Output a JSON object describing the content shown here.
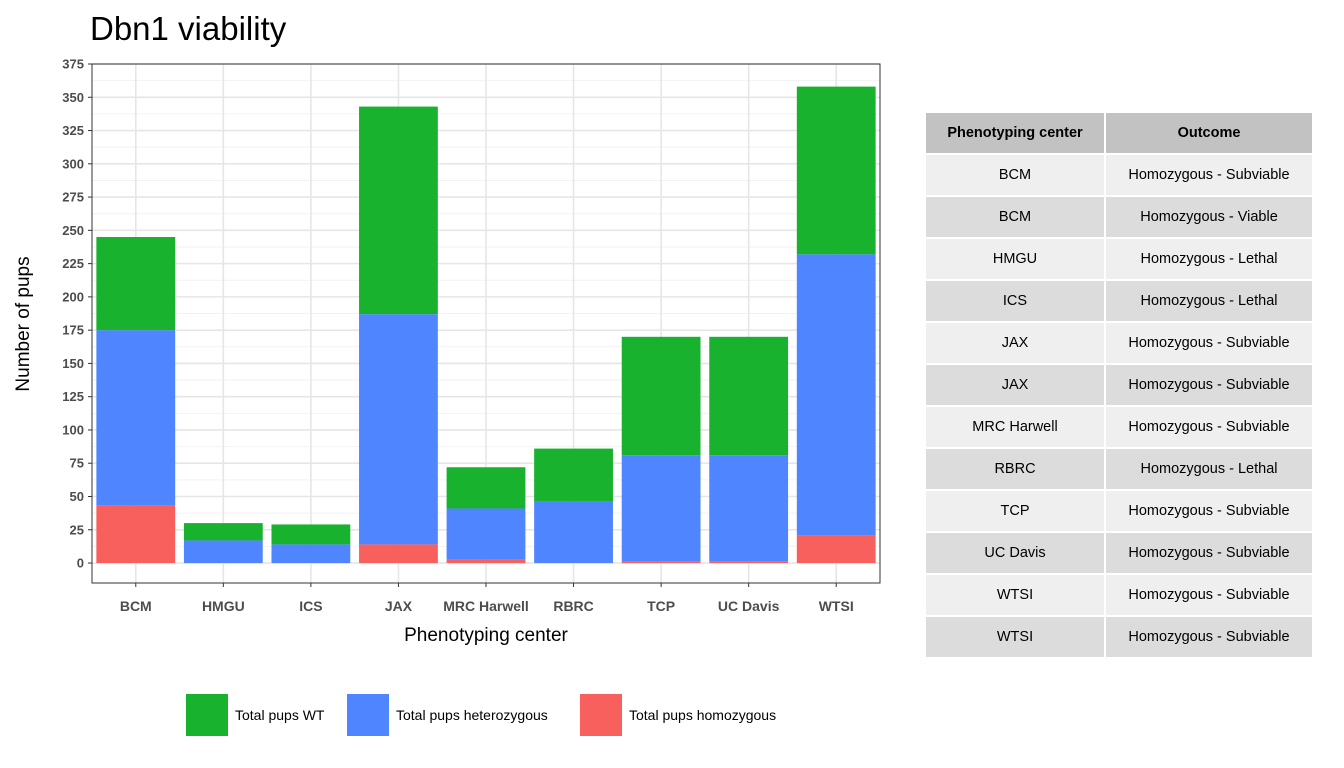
{
  "chart_data": {
    "type": "bar",
    "stacked": true,
    "title": "Dbn1 viability",
    "xlabel": "Phenotyping center",
    "ylabel": "Number of pups",
    "ylim": [
      -15,
      375
    ],
    "yticks": [
      0,
      25,
      50,
      75,
      100,
      125,
      150,
      175,
      200,
      225,
      250,
      275,
      300,
      325,
      350,
      375
    ],
    "grid": true,
    "legend_position": "bottom",
    "categories": [
      "BCM",
      "HMGU",
      "ICS",
      "JAX",
      "MRC Harwell",
      "RBRC",
      "TCP",
      "UC Davis",
      "WTSI"
    ],
    "series": [
      {
        "name": "Total pups homozygous",
        "color": "#f8605e",
        "values": [
          43,
          0,
          0,
          14,
          3,
          0,
          1,
          1,
          21
        ]
      },
      {
        "name": "Total pups heterozygous",
        "color": "#4f86ff",
        "values": [
          132,
          17,
          14,
          173,
          38,
          46,
          80,
          80,
          211
        ]
      },
      {
        "name": "Total pups WT",
        "color": "#19b22f",
        "values": [
          70,
          13,
          15,
          156,
          31,
          40,
          89,
          89,
          126
        ]
      }
    ],
    "legend_order": [
      "Total pups WT",
      "Total pups heterozygous",
      "Total pups homozygous"
    ]
  },
  "table": {
    "headers": [
      "Phenotyping center",
      "Outcome"
    ],
    "rows": [
      [
        "BCM",
        "Homozygous - Subviable"
      ],
      [
        "BCM",
        "Homozygous - Viable"
      ],
      [
        "HMGU",
        "Homozygous - Lethal"
      ],
      [
        "ICS",
        "Homozygous - Lethal"
      ],
      [
        "JAX",
        "Homozygous - Subviable"
      ],
      [
        "JAX",
        "Homozygous - Subviable"
      ],
      [
        "MRC Harwell",
        "Homozygous - Subviable"
      ],
      [
        "RBRC",
        "Homozygous - Lethal"
      ],
      [
        "TCP",
        "Homozygous - Subviable"
      ],
      [
        "UC Davis",
        "Homozygous - Subviable"
      ],
      [
        "WTSI",
        "Homozygous - Subviable"
      ],
      [
        "WTSI",
        "Homozygous - Subviable"
      ]
    ]
  }
}
